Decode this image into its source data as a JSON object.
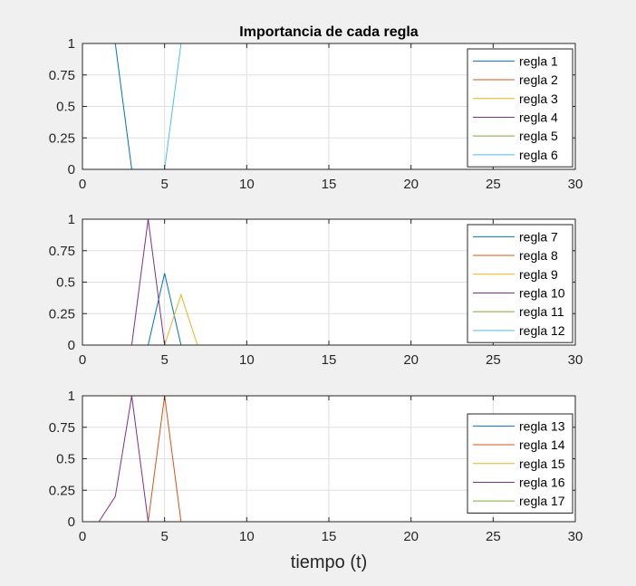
{
  "figure": {
    "title": "Importancia de cada regla",
    "xlabel": "tiempo (t)",
    "background": "#f0f0f0"
  },
  "chart_data": [
    {
      "type": "line",
      "title": "Importancia de cada regla",
      "xlabel": "",
      "ylabel": "",
      "xlim": [
        0,
        30
      ],
      "ylim": [
        0,
        1
      ],
      "xticks": [
        0,
        5,
        10,
        15,
        20,
        25,
        30
      ],
      "yticks": [
        0,
        0.25,
        0.5,
        0.75,
        1
      ],
      "ytick_labels": [
        "0",
        "0.25",
        "0.5",
        "0.75",
        "1"
      ],
      "grid": true,
      "legend_position": "top-right",
      "series": [
        {
          "name": "regla 1",
          "color": "#0072BD",
          "x": [
            1,
            2,
            3,
            30
          ],
          "y": [
            1,
            1,
            0,
            0
          ]
        },
        {
          "name": "regla 2",
          "color": "#D95319",
          "x": [
            1,
            30
          ],
          "y": [
            0,
            0
          ]
        },
        {
          "name": "regla 3",
          "color": "#EDB120",
          "x": [
            1,
            30
          ],
          "y": [
            0,
            0
          ]
        },
        {
          "name": "regla 4",
          "color": "#7E2F8E",
          "x": [
            1,
            30
          ],
          "y": [
            0,
            0
          ]
        },
        {
          "name": "regla 5",
          "color": "#77AC30",
          "x": [
            1,
            30
          ],
          "y": [
            0,
            0
          ]
        },
        {
          "name": "regla 6",
          "color": "#4DBEEE",
          "x": [
            1,
            5,
            6,
            30
          ],
          "y": [
            0,
            0,
            1,
            1
          ]
        }
      ]
    },
    {
      "type": "line",
      "xlabel": "",
      "ylabel": "",
      "xlim": [
        0,
        30
      ],
      "ylim": [
        0,
        1
      ],
      "xticks": [
        0,
        5,
        10,
        15,
        20,
        25,
        30
      ],
      "yticks": [
        0,
        0.25,
        0.5,
        0.75,
        1
      ],
      "ytick_labels": [
        "0",
        "0.25",
        "0.5",
        "0.75",
        "1"
      ],
      "grid": true,
      "legend_position": "top-right",
      "series": [
        {
          "name": "regla 7",
          "color": "#0072BD",
          "x": [
            1,
            4,
            5,
            6,
            30
          ],
          "y": [
            0,
            0,
            0.57,
            0,
            0
          ]
        },
        {
          "name": "regla 8",
          "color": "#D95319",
          "x": [
            1,
            30
          ],
          "y": [
            0,
            0
          ]
        },
        {
          "name": "regla 9",
          "color": "#EDB120",
          "x": [
            1,
            5,
            6,
            7,
            30
          ],
          "y": [
            0,
            0,
            0.4,
            0,
            0
          ]
        },
        {
          "name": "regla 10",
          "color": "#7E2F8E",
          "x": [
            1,
            3,
            4,
            5,
            30
          ],
          "y": [
            0,
            0,
            1,
            0,
            0
          ]
        },
        {
          "name": "regla 11",
          "color": "#77AC30",
          "x": [
            1,
            30
          ],
          "y": [
            0,
            0
          ]
        },
        {
          "name": "regla 12",
          "color": "#4DBEEE",
          "x": [
            1,
            30
          ],
          "y": [
            0,
            0
          ]
        }
      ]
    },
    {
      "type": "line",
      "xlabel": "tiempo (t)",
      "ylabel": "",
      "xlim": [
        0,
        30
      ],
      "ylim": [
        0,
        1
      ],
      "xticks": [
        0,
        5,
        10,
        15,
        20,
        25,
        30
      ],
      "yticks": [
        0,
        0.25,
        0.5,
        0.75,
        1
      ],
      "ytick_labels": [
        "0",
        "0.25",
        "0.5",
        "0.75",
        "1"
      ],
      "grid": true,
      "legend_position": "right",
      "series": [
        {
          "name": "regla 13",
          "color": "#0072BD",
          "x": [
            1,
            30
          ],
          "y": [
            0,
            0
          ]
        },
        {
          "name": "regla 14",
          "color": "#D95319",
          "x": [
            1,
            4,
            5,
            6,
            30
          ],
          "y": [
            0,
            0,
            1,
            0,
            0
          ]
        },
        {
          "name": "regla 15",
          "color": "#EDB120",
          "x": [
            1,
            30
          ],
          "y": [
            0,
            0
          ]
        },
        {
          "name": "regla 16",
          "color": "#7E2F8E",
          "x": [
            1,
            2,
            3,
            4,
            30
          ],
          "y": [
            0,
            0.2,
            1,
            0,
            0
          ]
        },
        {
          "name": "regla 17",
          "color": "#77AC30",
          "x": [
            1,
            30
          ],
          "y": [
            0,
            0
          ]
        }
      ]
    }
  ]
}
